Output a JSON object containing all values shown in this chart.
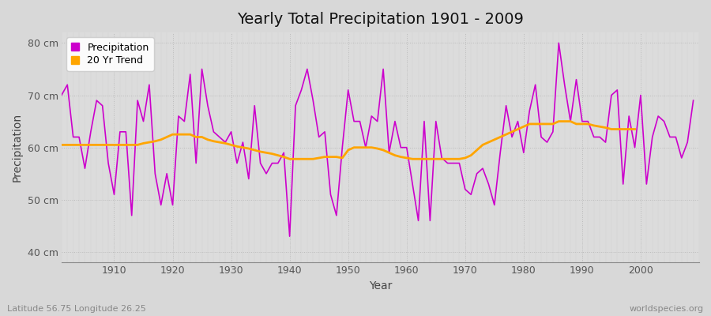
{
  "title": "Yearly Total Precipitation 1901 - 2009",
  "xlabel": "Year",
  "ylabel": "Precipitation",
  "subtitle_left": "Latitude 56.75 Longitude 26.25",
  "subtitle_right": "worldspecies.org",
  "ylim": [
    38,
    82
  ],
  "yticks": [
    40,
    50,
    60,
    70,
    80
  ],
  "ytick_labels": [
    "40 cm",
    "50 cm",
    "60 cm",
    "70 cm",
    "80 cm"
  ],
  "bg_outer": "#d8d8d8",
  "bg_inner": "#dcdcdc",
  "precip_color": "#cc00cc",
  "trend_color": "#ffa500",
  "years": [
    1901,
    1902,
    1903,
    1904,
    1905,
    1906,
    1907,
    1908,
    1909,
    1910,
    1911,
    1912,
    1913,
    1914,
    1915,
    1916,
    1917,
    1918,
    1919,
    1920,
    1921,
    1922,
    1923,
    1924,
    1925,
    1926,
    1927,
    1928,
    1929,
    1930,
    1931,
    1932,
    1933,
    1934,
    1935,
    1936,
    1937,
    1938,
    1939,
    1940,
    1941,
    1942,
    1943,
    1944,
    1945,
    1946,
    1947,
    1948,
    1949,
    1950,
    1951,
    1952,
    1953,
    1954,
    1955,
    1956,
    1957,
    1958,
    1959,
    1960,
    1961,
    1962,
    1963,
    1964,
    1965,
    1966,
    1967,
    1968,
    1969,
    1970,
    1971,
    1972,
    1973,
    1974,
    1975,
    1976,
    1977,
    1978,
    1979,
    1980,
    1981,
    1982,
    1983,
    1984,
    1985,
    1986,
    1987,
    1988,
    1989,
    1990,
    1991,
    1992,
    1993,
    1994,
    1995,
    1996,
    1997,
    1998,
    1999,
    2000,
    2001,
    2002,
    2003,
    2004,
    2005,
    2006,
    2007,
    2008,
    2009
  ],
  "precip": [
    70,
    72,
    62,
    62,
    56,
    63,
    69,
    68,
    57,
    51,
    63,
    63,
    47,
    69,
    65,
    72,
    55,
    49,
    55,
    49,
    66,
    65,
    74,
    57,
    75,
    68,
    63,
    62,
    61,
    63,
    57,
    61,
    54,
    68,
    57,
    55,
    57,
    57,
    59,
    43,
    68,
    71,
    75,
    69,
    62,
    63,
    51,
    47,
    60,
    71,
    65,
    65,
    60,
    66,
    65,
    75,
    59,
    65,
    60,
    60,
    53,
    46,
    65,
    46,
    65,
    58,
    57,
    57,
    57,
    52,
    51,
    55,
    56,
    53,
    49,
    59,
    68,
    62,
    65,
    59,
    67,
    72,
    62,
    61,
    63,
    80,
    72,
    65,
    73,
    65,
    65,
    62,
    62,
    61,
    70,
    71,
    53,
    66,
    60,
    70,
    53,
    62,
    66,
    65,
    62,
    62,
    58,
    61,
    69
  ],
  "trend_years": [
    1901,
    1902,
    1903,
    1904,
    1905,
    1906,
    1907,
    1908,
    1909,
    1910,
    1911,
    1912,
    1913,
    1914,
    1915,
    1916,
    1917,
    1918,
    1919,
    1920,
    1921,
    1922,
    1923,
    1924,
    1925,
    1926,
    1927,
    1928,
    1929,
    1930,
    1931,
    1932,
    1933,
    1934,
    1935,
    1936,
    1937,
    1938,
    1939,
    1940,
    1941,
    1942,
    1943,
    1944,
    1945,
    1946,
    1947,
    1948,
    1949,
    1950,
    1951,
    1952,
    1953,
    1954,
    1955,
    1956,
    1957,
    1958,
    1959,
    1960,
    1961,
    1962,
    1963,
    1964,
    1965,
    1966,
    1967,
    1968,
    1969,
    1970,
    1971,
    1972,
    1973,
    1974,
    1975,
    1976,
    1977,
    1978,
    1979,
    1980,
    1981,
    1982,
    1983,
    1984,
    1985,
    1986,
    1987,
    1988,
    1989,
    1990,
    1991,
    1992,
    1993,
    1994,
    1995,
    1996,
    1997,
    1998,
    1999
  ],
  "trend": [
    60.5,
    60.5,
    60.5,
    60.5,
    60.5,
    60.5,
    60.5,
    60.5,
    60.5,
    60.5,
    60.5,
    60.5,
    60.5,
    60.5,
    60.8,
    61.0,
    61.2,
    61.5,
    62.0,
    62.5,
    62.5,
    62.5,
    62.5,
    62.0,
    62.0,
    61.5,
    61.2,
    61.0,
    60.8,
    60.5,
    60.2,
    60.0,
    59.8,
    59.5,
    59.2,
    59.0,
    58.8,
    58.5,
    58.2,
    57.8,
    57.8,
    57.8,
    57.8,
    57.8,
    58.0,
    58.2,
    58.2,
    58.2,
    58.0,
    59.5,
    60.0,
    60.0,
    60.0,
    60.0,
    59.8,
    59.5,
    59.0,
    58.5,
    58.2,
    58.0,
    57.8,
    57.8,
    57.8,
    57.8,
    57.8,
    57.8,
    57.8,
    57.8,
    57.8,
    58.0,
    58.5,
    59.5,
    60.5,
    61.0,
    61.5,
    62.0,
    62.5,
    63.0,
    63.5,
    64.0,
    64.5,
    64.5,
    64.5,
    64.5,
    64.5,
    65.0,
    65.0,
    65.0,
    64.5,
    64.5,
    64.5,
    64.2,
    64.0,
    63.8,
    63.5,
    63.5,
    63.5,
    63.5,
    63.5
  ]
}
